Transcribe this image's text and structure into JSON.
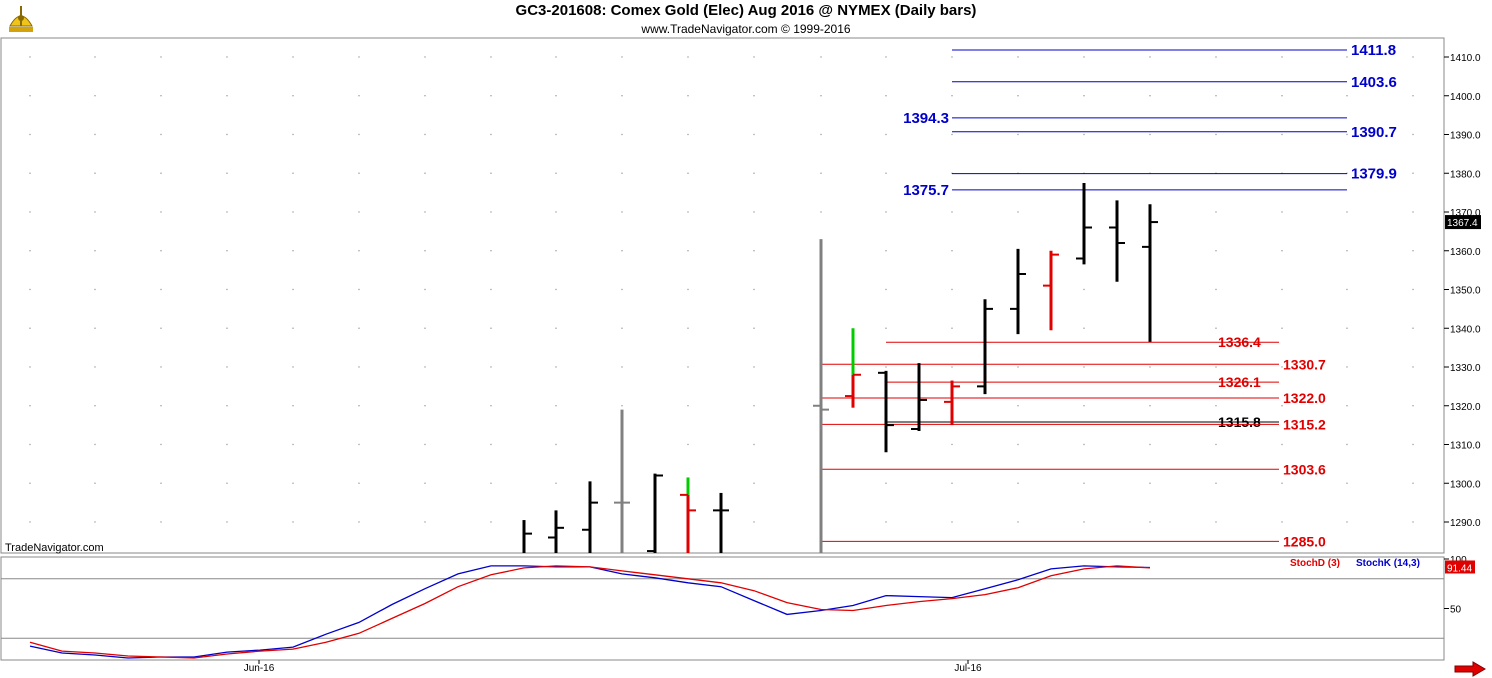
{
  "header": {
    "title": "GC3-201608:  Comex Gold (Elec) Aug 2016 @ NYMEX  (Daily bars)",
    "subtitle": "www.TradeNavigator.com © 1999-2016"
  },
  "watermark": "TradeNavigator.com",
  "colors": {
    "blue": "#0000cc",
    "red": "#e00000",
    "up_bar": "#000000",
    "down_bar": "#e00000",
    "gray_bar": "#808080",
    "green": "#00cc00"
  },
  "icons": {
    "logo": "sextant-logo-icon",
    "nav": "red-right-arrow-icon"
  },
  "chart_data": [
    {
      "type": "ohlc",
      "ylim": [
        1282,
        1420
      ],
      "yticks": [
        1290.0,
        1300.0,
        1310.0,
        1320.0,
        1330.0,
        1340.0,
        1350.0,
        1360.0,
        1370.0,
        1380.0,
        1390.0,
        1400.0,
        1410.0
      ],
      "ytick_labels": [
        "1290.0",
        "1300.0",
        "1310.0",
        "1320.0",
        "1330.0",
        "1340.0",
        "1350.0",
        "1360.0",
        "1370.0",
        "1380.0",
        "1390.0",
        "1400.0",
        "1410.0"
      ],
      "last_price": "1367.4",
      "bars": [
        {
          "x": 524,
          "h": 1290.5,
          "l": 1281,
          "o": 1281,
          "c": 1287,
          "color": "black"
        },
        {
          "x": 556,
          "h": 1293,
          "l": 1282,
          "o": 1286,
          "c": 1288.5,
          "color": "black"
        },
        {
          "x": 590,
          "h": 1300.5,
          "l": 1282,
          "o": 1288,
          "c": 1295,
          "color": "black"
        },
        {
          "x": 622,
          "h": 1319,
          "l": 1282,
          "o": 1295,
          "c": 1295,
          "color": "gray"
        },
        {
          "x": 655,
          "h": 1302.5,
          "l": 1282,
          "o": 1282.5,
          "c": 1302,
          "color": "black"
        },
        {
          "x": 688,
          "h": 1301.5,
          "l": 1282,
          "o": 1297,
          "c": 1293,
          "color": "red",
          "wick_color": "green"
        },
        {
          "x": 721,
          "h": 1297.5,
          "l": 1282,
          "o": 1293,
          "c": 1293,
          "color": "black"
        },
        {
          "x": 821,
          "h": 1363,
          "l": 1282,
          "o": 1320,
          "c": 1319,
          "color": "gray"
        },
        {
          "x": 853,
          "h": 1340,
          "l": 1319.5,
          "o": 1322.5,
          "c": 1328,
          "color": "red",
          "wick_color": "green"
        },
        {
          "x": 886,
          "h": 1329,
          "l": 1308,
          "o": 1328.5,
          "c": 1315,
          "color": "black"
        },
        {
          "x": 919,
          "h": 1331,
          "l": 1313.5,
          "o": 1314,
          "c": 1321.5,
          "color": "black"
        },
        {
          "x": 952,
          "h": 1326.5,
          "l": 1315,
          "o": 1321,
          "c": 1325,
          "color": "red"
        },
        {
          "x": 985,
          "h": 1347.5,
          "l": 1323,
          "o": 1325,
          "c": 1345,
          "color": "black"
        },
        {
          "x": 1018,
          "h": 1360.5,
          "l": 1338.5,
          "o": 1345,
          "c": 1354,
          "color": "black"
        },
        {
          "x": 1051,
          "h": 1360,
          "l": 1339.5,
          "o": 1351,
          "c": 1359,
          "color": "red"
        },
        {
          "x": 1084,
          "h": 1377.5,
          "l": 1356.5,
          "o": 1358,
          "c": 1366,
          "color": "black"
        },
        {
          "x": 1117,
          "h": 1373,
          "l": 1352,
          "o": 1366,
          "c": 1362,
          "color": "black"
        },
        {
          "x": 1150,
          "h": 1372,
          "l": 1336.5,
          "o": 1361,
          "c": 1367.4,
          "color": "black"
        }
      ],
      "levels": [
        {
          "value": 1411.8,
          "label": "1411.8",
          "color": "blue",
          "x1": 952,
          "x2": 1347,
          "label_side": "right"
        },
        {
          "value": 1403.6,
          "label": "1403.6",
          "color": "blue",
          "x1": 952,
          "x2": 1347,
          "label_side": "right"
        },
        {
          "value": 1394.3,
          "label": "1394.3",
          "color": "blue",
          "x1": 952,
          "x2": 1347,
          "label_side": "left"
        },
        {
          "value": 1390.7,
          "label": "1390.7",
          "color": "blue",
          "x1": 952,
          "x2": 1347,
          "label_side": "right"
        },
        {
          "value": 1379.9,
          "label": "1379.9",
          "color": "blue",
          "x1": 952,
          "x2": 1347,
          "label_side": "right"
        },
        {
          "value": 1375.7,
          "label": "1375.7",
          "color": "blue",
          "x1": 952,
          "x2": 1347,
          "label_side": "left"
        },
        {
          "value": 1336.4,
          "label": "1336.4",
          "color": "red",
          "x1": 886,
          "x2": 1279,
          "label_side": "inner"
        },
        {
          "value": 1330.7,
          "label": "1330.7",
          "color": "red",
          "x1": 821,
          "x2": 1279,
          "label_side": "right"
        },
        {
          "value": 1326.1,
          "label": "1326.1",
          "color": "red",
          "x1": 886,
          "x2": 1279,
          "label_side": "inner"
        },
        {
          "value": 1322.0,
          "label": "1322.0",
          "color": "red",
          "x1": 821,
          "x2": 1279,
          "label_side": "right"
        },
        {
          "value": 1315.8,
          "label": "1315.8",
          "color": "black",
          "x1": 886,
          "x2": 1279,
          "label_side": "inner"
        },
        {
          "value": 1315.2,
          "label": "1315.2",
          "color": "red",
          "x1": 821,
          "x2": 1279,
          "label_side": "right"
        },
        {
          "value": 1303.6,
          "label": "1303.6",
          "color": "red",
          "x1": 821,
          "x2": 1279,
          "label_side": "right"
        },
        {
          "value": 1285.0,
          "label": "1285.0",
          "color": "red",
          "x1": 821,
          "x2": 1279,
          "label_side": "right"
        }
      ]
    },
    {
      "type": "line",
      "ylim": [
        0,
        100
      ],
      "yticks": [
        100,
        50
      ],
      "ytick_labels": [
        "100",
        "50"
      ],
      "reference_lines": [
        80,
        20
      ],
      "last_value": "91.44",
      "series": [
        {
          "name": "StochK (14,3)",
          "color": "blue",
          "x": [
            30,
            62,
            95,
            128,
            161,
            194,
            227,
            260,
            293,
            326,
            359,
            392,
            425,
            458,
            491,
            524,
            556,
            590,
            622,
            655,
            688,
            721,
            754,
            787,
            821,
            853,
            886,
            919,
            952,
            985,
            1018,
            1051,
            1084,
            1117,
            1150
          ],
          "values": [
            12,
            5,
            3,
            0,
            1,
            1,
            6,
            8,
            11,
            24,
            36,
            54,
            70,
            85,
            93,
            93,
            92,
            92,
            85,
            81,
            76,
            72,
            58,
            44,
            48,
            53,
            63,
            62,
            61,
            70,
            79,
            90,
            93,
            92,
            91.4
          ]
        },
        {
          "name": "StochD (3)",
          "color": "red",
          "x": [
            30,
            62,
            95,
            128,
            161,
            194,
            227,
            260,
            293,
            326,
            359,
            392,
            425,
            458,
            491,
            524,
            556,
            590,
            622,
            655,
            688,
            721,
            754,
            787,
            821,
            853,
            886,
            919,
            952,
            985,
            1018,
            1051,
            1084,
            1117,
            1150
          ],
          "values": [
            16,
            7,
            5,
            2,
            1,
            0,
            4,
            7,
            9,
            16,
            25,
            40,
            55,
            72,
            84,
            91,
            93,
            92,
            88,
            84,
            80,
            76,
            68,
            56,
            49,
            48,
            53,
            57,
            60,
            64,
            71,
            83,
            90,
            93,
            91
          ]
        }
      ],
      "legend": [
        {
          "text": "StochD (3)",
          "color": "red"
        },
        {
          "text": "StochK (14,3)",
          "color": "blue"
        }
      ]
    }
  ],
  "x_axis": {
    "ticks": [
      {
        "x": 259,
        "label": "Jun-16"
      },
      {
        "x": 968,
        "label": "Jul-16"
      }
    ]
  }
}
